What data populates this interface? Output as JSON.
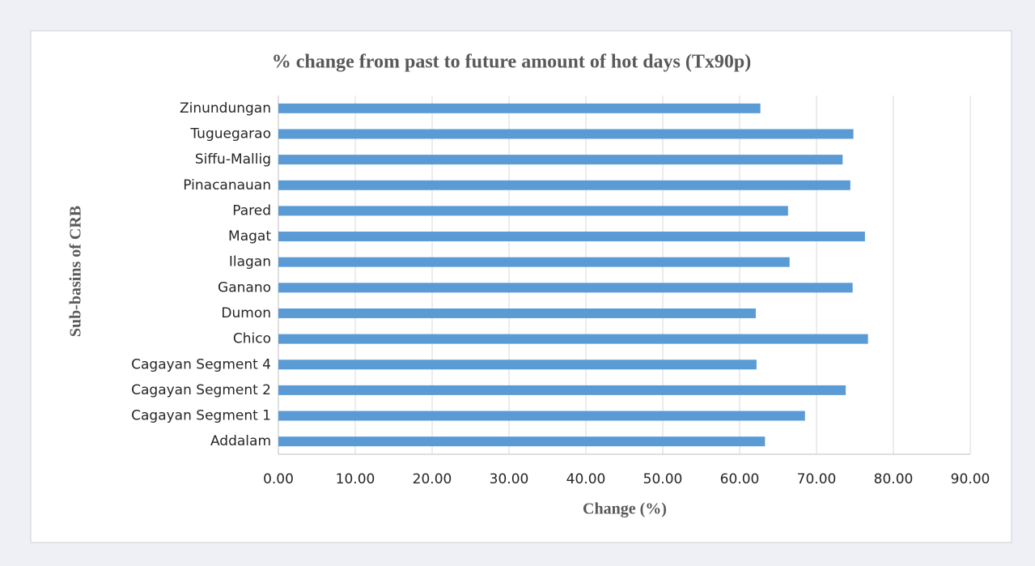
{
  "chart_data": {
    "type": "bar",
    "orientation": "horizontal",
    "title": "% change from past to future amount of hot days (Tx90p)",
    "x_label": "Change (%)",
    "y_label": "Sub-basins of CRB",
    "categories": [
      "Zinundungan",
      "Tuguegarao",
      "Siffu-Mallig",
      "Pinacanauan",
      "Pared",
      "Magat",
      "Ilagan",
      "Ganano",
      "Dumon",
      "Chico",
      "Cagayan Segment 4",
      "Cagayan Segment 2",
      "Cagayan Segment 1",
      "Addalam"
    ],
    "values": [
      62.7,
      74.8,
      73.4,
      74.4,
      66.3,
      76.3,
      66.5,
      74.7,
      62.1,
      76.7,
      62.2,
      73.8,
      68.5,
      63.3
    ],
    "color": "#5b9bd5",
    "xlim": [
      0,
      90
    ],
    "xticks": [
      {
        "value": 0,
        "label": "0.00"
      },
      {
        "value": 10,
        "label": "10.00"
      },
      {
        "value": 20,
        "label": "20.00"
      },
      {
        "value": 30,
        "label": "30.00"
      },
      {
        "value": 40,
        "label": "40.00"
      },
      {
        "value": 50,
        "label": "50.00"
      },
      {
        "value": 60,
        "label": "60.00"
      },
      {
        "value": 70,
        "label": "70.00"
      },
      {
        "value": 80,
        "label": "80.00"
      },
      {
        "value": 90,
        "label": "90.00"
      }
    ],
    "grid": true
  }
}
